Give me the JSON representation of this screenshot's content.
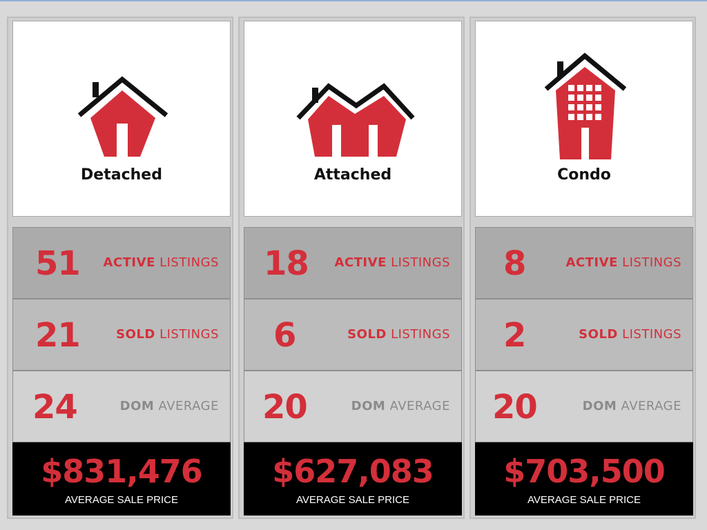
{
  "colors": {
    "accent": "#d32f3a",
    "panel_dark": "#000000",
    "dom_label": "#8a8a8a"
  },
  "columns": [
    {
      "type": "Detached",
      "icon": "detached-house-icon",
      "active": {
        "value": "51",
        "bold": "ACTIVE",
        "rest": "LISTINGS"
      },
      "sold": {
        "value": "21",
        "bold": "SOLD",
        "rest": "LISTINGS"
      },
      "dom": {
        "value": "24",
        "bold": "DOM",
        "rest": "AVERAGE"
      },
      "price": "$831,476",
      "price_caption": "AVERAGE SALE PRICE"
    },
    {
      "type": "Attached",
      "icon": "attached-house-icon",
      "active": {
        "value": "18",
        "bold": "ACTIVE",
        "rest": "LISTINGS"
      },
      "sold": {
        "value": "6",
        "bold": "SOLD",
        "rest": "LISTINGS"
      },
      "dom": {
        "value": "20",
        "bold": "DOM",
        "rest": "AVERAGE"
      },
      "price": "$627,083",
      "price_caption": "AVERAGE SALE PRICE"
    },
    {
      "type": "Condo",
      "icon": "condo-building-icon",
      "active": {
        "value": "8",
        "bold": "ACTIVE",
        "rest": "LISTINGS"
      },
      "sold": {
        "value": "2",
        "bold": "SOLD",
        "rest": "LISTINGS"
      },
      "dom": {
        "value": "20",
        "bold": "DOM",
        "rest": "AVERAGE"
      },
      "price": "$703,500",
      "price_caption": "AVERAGE SALE PRICE"
    }
  ]
}
